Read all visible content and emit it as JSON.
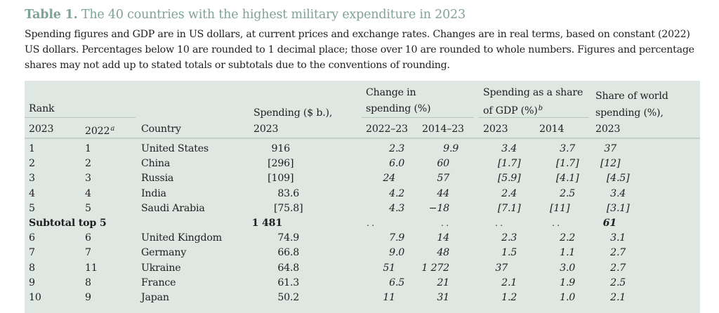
{
  "title": {
    "label": "Table 1.",
    "text": "The 40 countries with the highest military expenditure in 2023"
  },
  "intro": {
    "lines": [
      "Spending figures and GDP are in US dollars, at current prices and exchange rates. Changes are in real terms, based on constant (2022)",
      "US dollars. Percentages below 10 are rounded to 1 decimal place; those over 10 are rounded to whole numbers. Figures and percentage",
      "shares may not add up to stated totals or subtotals due to the conventions of rounding."
    ]
  },
  "header": {
    "rank_group": "Rank",
    "rank_2023": "2023",
    "rank_2022": "2022",
    "rank_2022_note": "a",
    "country": "Country",
    "spending_l1": "Spending ($ b.),",
    "spending_l2": "2023",
    "change_l1": "Change in",
    "change_l2": "spending (%)",
    "change_2022_23": "2022–23",
    "change_2014_23": "2014–23",
    "gdp_l1": "Spending as a share",
    "gdp_l2": "of GDP (%)",
    "gdp_note": "b",
    "gdp_2023": "2023",
    "gdp_2014": "2014",
    "world_l1": "Share of world",
    "world_l2": "spending (%),",
    "world_l3": "2023"
  },
  "rows": [
    {
      "rank2023": "1",
      "rank2022": "1",
      "country": "United States",
      "spending": "916",
      "chg1": "2.3",
      "chg2": "9.9",
      "gdp2023": "3.4",
      "gdp2014": "3.7",
      "world": "37"
    },
    {
      "rank2023": "2",
      "rank2022": "2",
      "country": "China",
      "spending": "[296]",
      "chg1": "6.0",
      "chg2": "60",
      "gdp2023": "[1.7]",
      "gdp2014": "[1.7]",
      "world": "[12]"
    },
    {
      "rank2023": "3",
      "rank2022": "3",
      "country": "Russia",
      "spending": "[109]",
      "chg1": "24",
      "chg2": "57",
      "gdp2023": "[5.9]",
      "gdp2014": "[4.1]",
      "world": "[4.5]"
    },
    {
      "rank2023": "4",
      "rank2022": "4",
      "country": "India",
      "spending": "83.6",
      "chg1": "4.2",
      "chg2": "44",
      "gdp2023": "2.4",
      "gdp2014": "2.5",
      "world": "3.4"
    },
    {
      "rank2023": "5",
      "rank2022": "5",
      "country": "Saudi Arabia",
      "spending": "[75.8]",
      "chg1": "4.3",
      "chg2": "−18",
      "gdp2023": "[7.1]",
      "gdp2014": "[11]",
      "world": "[3.1]"
    }
  ],
  "subtotal": {
    "label": "Subtotal top 5",
    "spending": "1 481",
    "chg1": ". .",
    "chg2": ". .",
    "gdp2023": ". .",
    "gdp2014": ". .",
    "world": "61"
  },
  "rows2": [
    {
      "rank2023": "6",
      "rank2022": "6",
      "country": "United Kingdom",
      "spending": "74.9",
      "chg1": "7.9",
      "chg2": "14",
      "gdp2023": "2.3",
      "gdp2014": "2.2",
      "world": "3.1"
    },
    {
      "rank2023": "7",
      "rank2022": "7",
      "country": "Germany",
      "spending": "66.8",
      "chg1": "9.0",
      "chg2": "48",
      "gdp2023": "1.5",
      "gdp2014": "1.1",
      "world": "2.7"
    },
    {
      "rank2023": "8",
      "rank2022": "11",
      "country": "Ukraine",
      "spending": "64.8",
      "chg1": "51",
      "chg2": "1 272",
      "gdp2023": "37",
      "gdp2014": "3.0",
      "world": "2.7"
    },
    {
      "rank2023": "9",
      "rank2022": "8",
      "country": "France",
      "spending": "61.3",
      "chg1": "6.5",
      "chg2": "21",
      "gdp2023": "2.1",
      "gdp2014": "1.9",
      "world": "2.5"
    },
    {
      "rank2023": "10",
      "rank2022": "9",
      "country": "Japan",
      "spending": "50.2",
      "chg1": "11",
      "chg2": "31",
      "gdp2023": "1.2",
      "gdp2014": "1.0",
      "world": "2.1"
    }
  ]
}
